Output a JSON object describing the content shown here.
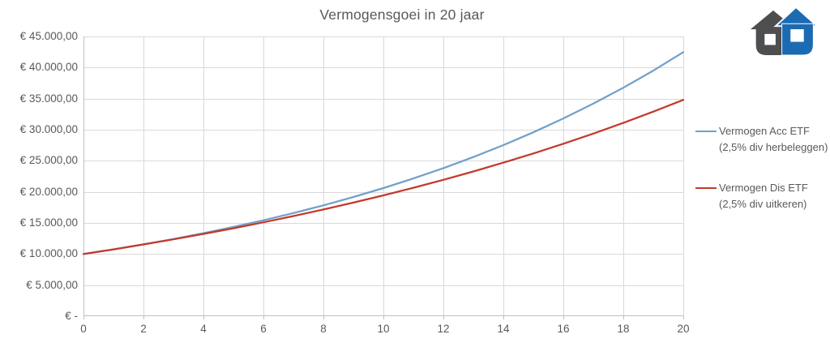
{
  "title": "Vermogensgoei in 20 jaar",
  "chart_data": {
    "type": "line",
    "title": "Vermogensgoei in 20 jaar",
    "xlabel": "",
    "ylabel": "",
    "xlim": [
      0,
      20
    ],
    "ylim": [
      0,
      45000
    ],
    "grid": true,
    "legend_position": "right",
    "x": [
      0,
      1,
      2,
      3,
      4,
      5,
      6,
      7,
      8,
      9,
      10,
      11,
      12,
      13,
      14,
      15,
      16,
      17,
      18,
      19,
      20
    ],
    "x_tick_labels": [
      "0",
      "2",
      "4",
      "6",
      "8",
      "10",
      "12",
      "14",
      "16",
      "18",
      "20"
    ],
    "y_tick_labels_top_to_bottom": [
      "€ 45.000,00",
      "€ 40.000,00",
      "€ 35.000,00",
      "€ 30.000,00",
      "€ 25.000,00",
      "€ 20.000,00",
      "€ 15.000,00",
      "€ 10.000,00",
      "€ 5.000,00",
      "€ -"
    ],
    "series": [
      {
        "name": "Vermogen Acc ETF (2,5% div herbeleggen)",
        "legend_lines": [
          "Vermogen Acc ETF",
          "(2,5% div herbeleggen)"
        ],
        "color": "#71A0CB",
        "values": [
          10000,
          10750,
          11556,
          12423,
          13355,
          14356,
          15433,
          16590,
          17835,
          19172,
          20610,
          22156,
          23818,
          25604,
          27524,
          29589,
          31808,
          34194,
          36758,
          39515,
          42479
        ]
      },
      {
        "name": "Vermogen Dis ETF (2,5% div uitkeren)",
        "legend_lines": [
          "Vermogen Dis ETF",
          "(2,5% div uitkeren)"
        ],
        "color": "#C4392B",
        "values": [
          10000,
          10750,
          11538,
          12364,
          13233,
          14144,
          15101,
          16107,
          17162,
          18270,
          19433,
          20655,
          21938,
          23285,
          24699,
          26184,
          27743,
          29380,
          31099,
          32904,
          34799
        ]
      }
    ]
  },
  "colors": {
    "background": "#FFFFFF",
    "grid": "#D9D9D9",
    "axis": "#BFBFBF",
    "text": "#595959",
    "logo_gray": "#4E4E50",
    "logo_blue": "#1C6BB2"
  },
  "logo": {
    "icon_name": "two-houses-logo"
  }
}
